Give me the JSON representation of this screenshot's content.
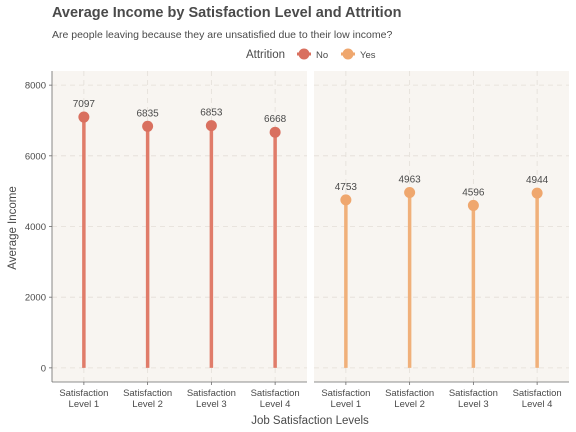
{
  "chart_data": {
    "type": "lollipop",
    "title": "Average Income by Satisfaction Level and Attrition",
    "subtitle": "Are people leaving because they are unsatisfied due to their low income?",
    "xlabel": "Job Satisfaction Levels",
    "ylabel": "Average Income",
    "ylim": [
      -400,
      8400
    ],
    "yticks": [
      0,
      2000,
      4000,
      6000,
      8000
    ],
    "grid": true,
    "legend": {
      "title": "Attrition",
      "position": "top",
      "entries": [
        {
          "label": "No",
          "color": "#d9705f"
        },
        {
          "label": "Yes",
          "color": "#efa76e"
        }
      ]
    },
    "categories": [
      [
        "Satisfaction",
        "Level 1"
      ],
      [
        "Satisfaction",
        "Level 2"
      ],
      [
        "Satisfaction",
        "Level 3"
      ],
      [
        "Satisfaction",
        "Level 4"
      ]
    ],
    "facets": [
      {
        "name": "No",
        "point_color": "#d9705f",
        "stem_color": "#e07c6a",
        "values": [
          7097,
          6835,
          6853,
          6668
        ],
        "labels": [
          "7097",
          "6835",
          "6853",
          "6668"
        ]
      },
      {
        "name": "Yes",
        "point_color": "#efa76e",
        "stem_color": "#f0b07a",
        "values": [
          4753,
          4963,
          4596,
          4944
        ],
        "labels": [
          "4753",
          "4963",
          "4596",
          "4944"
        ]
      }
    ],
    "panel_background": "#f8f5f1",
    "grid_color": "#e3ded8"
  }
}
